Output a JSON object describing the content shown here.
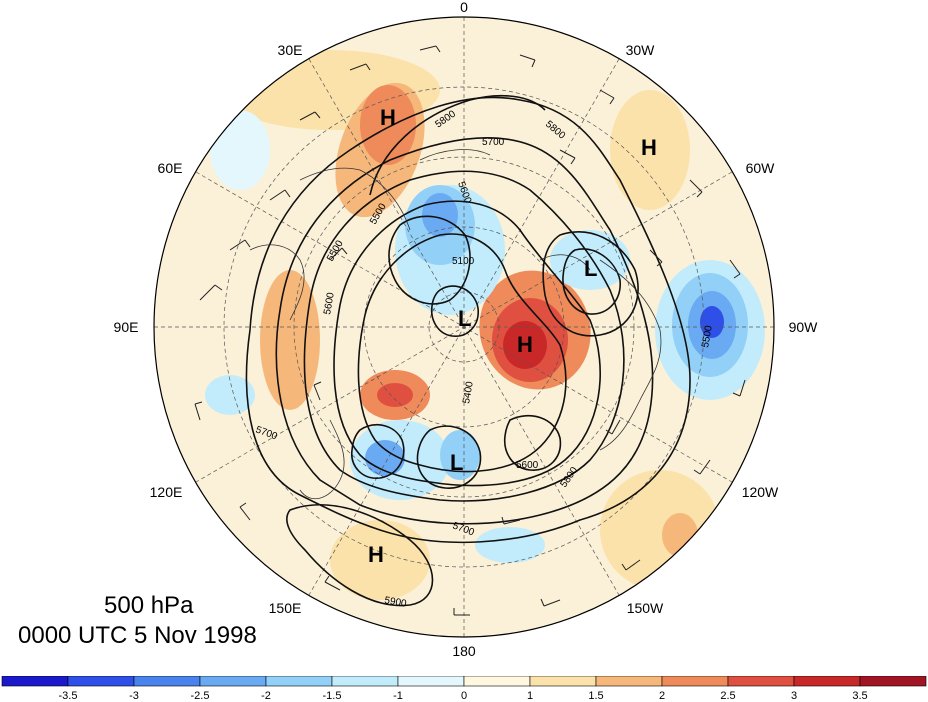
{
  "map": {
    "level_label": "500 hPa",
    "time_label": "0000 UTC 5 Nov 1998",
    "longitude_labels": [
      "0",
      "30W",
      "60W",
      "90W",
      "120W",
      "150W",
      "180",
      "150E",
      "120E",
      "90E",
      "60E",
      "30E"
    ],
    "systems": [
      {
        "type": "H",
        "name": "high-ural"
      },
      {
        "type": "H",
        "name": "high-atlantic"
      },
      {
        "type": "H",
        "name": "high-pacific"
      },
      {
        "type": "H",
        "name": "high-canada"
      },
      {
        "type": "L",
        "name": "low-pole"
      },
      {
        "type": "L",
        "name": "low-hudson"
      },
      {
        "type": "L",
        "name": "low-siberia"
      }
    ],
    "contour_labels": [
      "5800",
      "5700",
      "5600",
      "5500",
      "5100",
      "5400",
      "5600",
      "5700",
      "5800",
      "5900",
      "5500",
      "5800",
      "5700",
      "5600",
      "5500"
    ]
  },
  "colorbar": {
    "tick_labels": [
      "-3.5",
      "-3",
      "-2.5",
      "-2",
      "-1.5",
      "-1",
      "0",
      "1",
      "1.5",
      "2",
      "2.5",
      "3",
      "3.5"
    ],
    "colors": [
      "#1a1acc",
      "#2e50e8",
      "#4a82ee",
      "#6aaaf2",
      "#92d0f7",
      "#c2ecfb",
      "#e4f7fd",
      "#fff7e0",
      "#fbe2aa",
      "#f6b77b",
      "#ef8a5a",
      "#e05040",
      "#c82828",
      "#a01424"
    ]
  }
}
